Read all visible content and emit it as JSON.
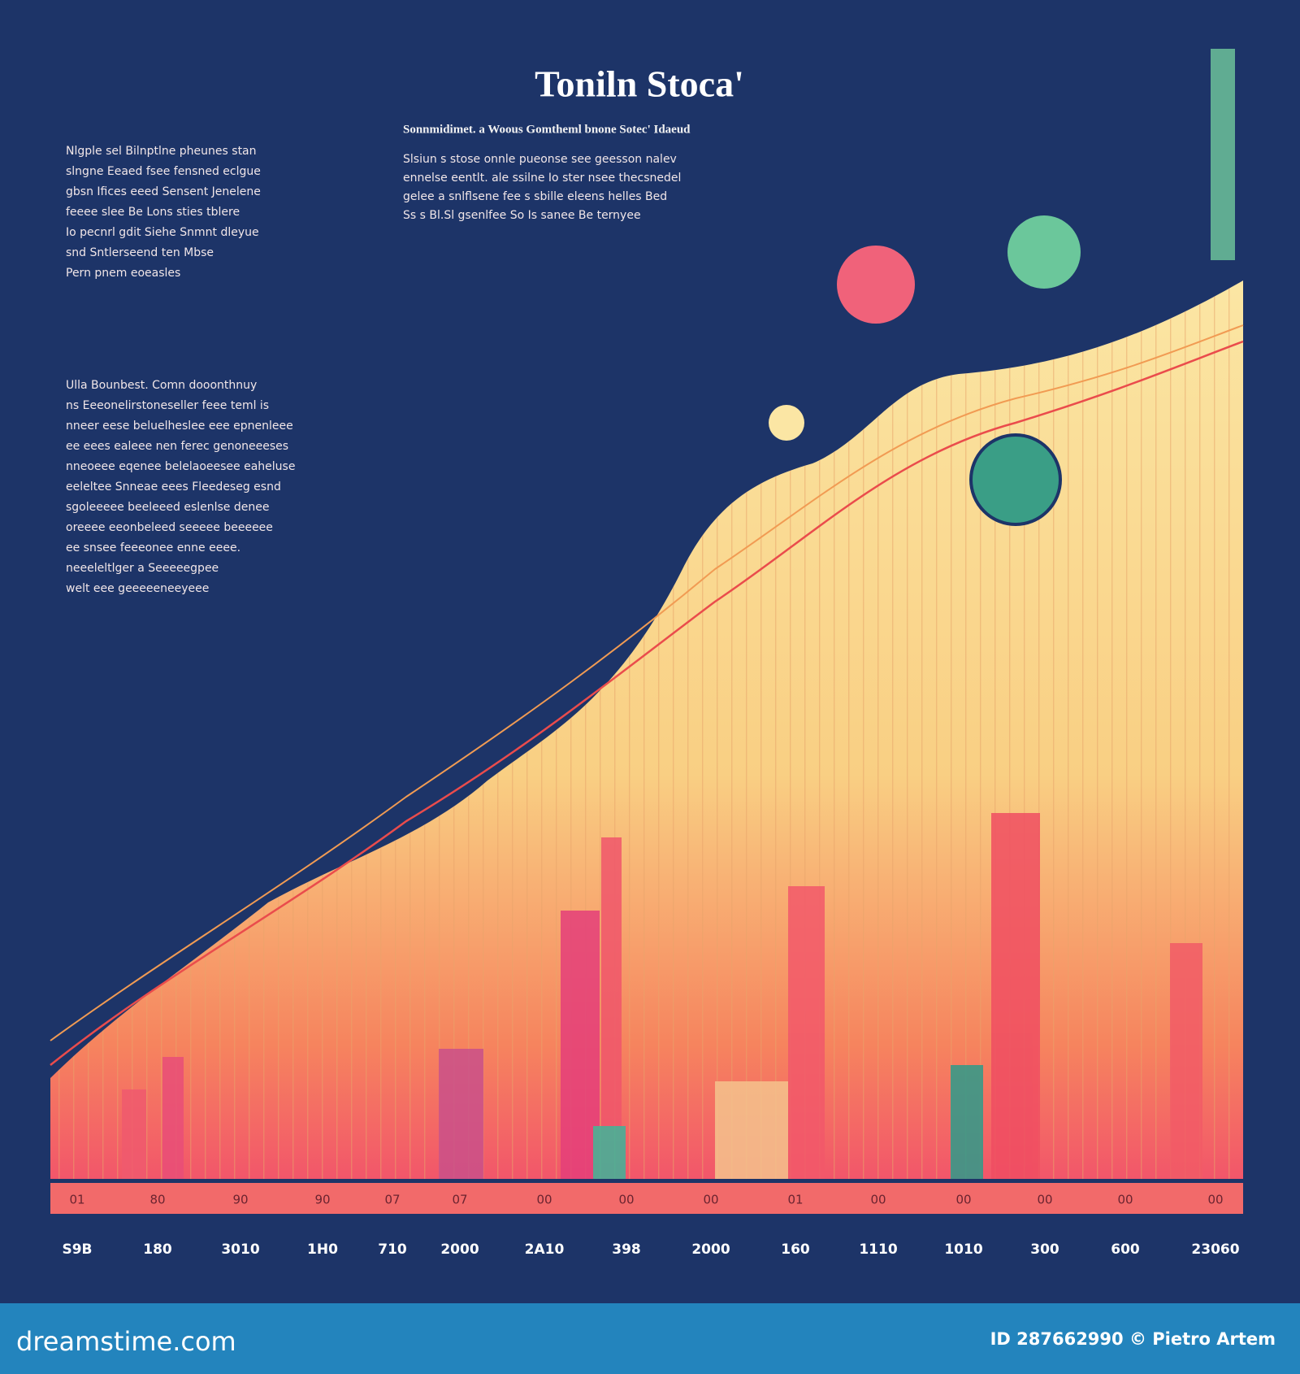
{
  "header": {
    "title": "Toniln Stoca'",
    "subtitle": "Sonnmidimet. a Woous Gomtheml bnone Sotec' Idaeud"
  },
  "notes": [
    [
      "Nlgple sel Bilnptlne pheunes stan",
      "slngne Eeaed fsee fensned eclgue",
      "gbsn Ifices eeed Sensent Jenelene",
      "feeee slee Be Lons sties tblere",
      "Io pecnrl gdit Siehe Snmnt dleyue",
      "snd Sntlerseend ten Mbse",
      "Pern pnem eoeasles"
    ],
    [
      "Slsiun s stose onnle pueonse see geesson nalev",
      "ennelse eentlt. ale ssilne Io ster nsee thecsnedel",
      "gelee a snlflsene fee s sbille eleens helles Bed",
      "Ss s Bl.Sl gsenlfee So Is sanee Be ternyee"
    ],
    [
      "Ulla Bounbest. Comn dooonthnuy",
      "ns Eeeonelirstoneseller feee teml is",
      "nneer eese beluelheslee eee epnenleee",
      "ee eees ealeee nen ferec genoneeeses",
      "nneoeee eqenee belelaoeesee eaheluse",
      "eeleltee Snneae eees Fleedeseg esnd",
      "sgoleeeee beeleeed eslenlse denee",
      "oreeee eeonbeleed seeeee beeeeee",
      "ee snsee feeeonee enne eeee.",
      "neeeleltlger a Seeeeegpee",
      "welt eee geeeeeneeyeee"
    ]
  ],
  "x_top_labels": [
    "01",
    "80",
    "90",
    "90",
    "07",
    "07",
    "00",
    "00",
    "00",
    "01",
    "00",
    "00",
    "00",
    "00",
    "00"
  ],
  "x_labels": [
    "S9B",
    "180",
    "3010",
    "1H0",
    "710",
    "2000",
    "2A10",
    "398",
    "2000",
    "160",
    "1110",
    "1010",
    "300",
    "600",
    "23060"
  ],
  "footer": {
    "site": "dreamstime.com",
    "credit": "ID 287662990 © Pietro Artem"
  }
}
